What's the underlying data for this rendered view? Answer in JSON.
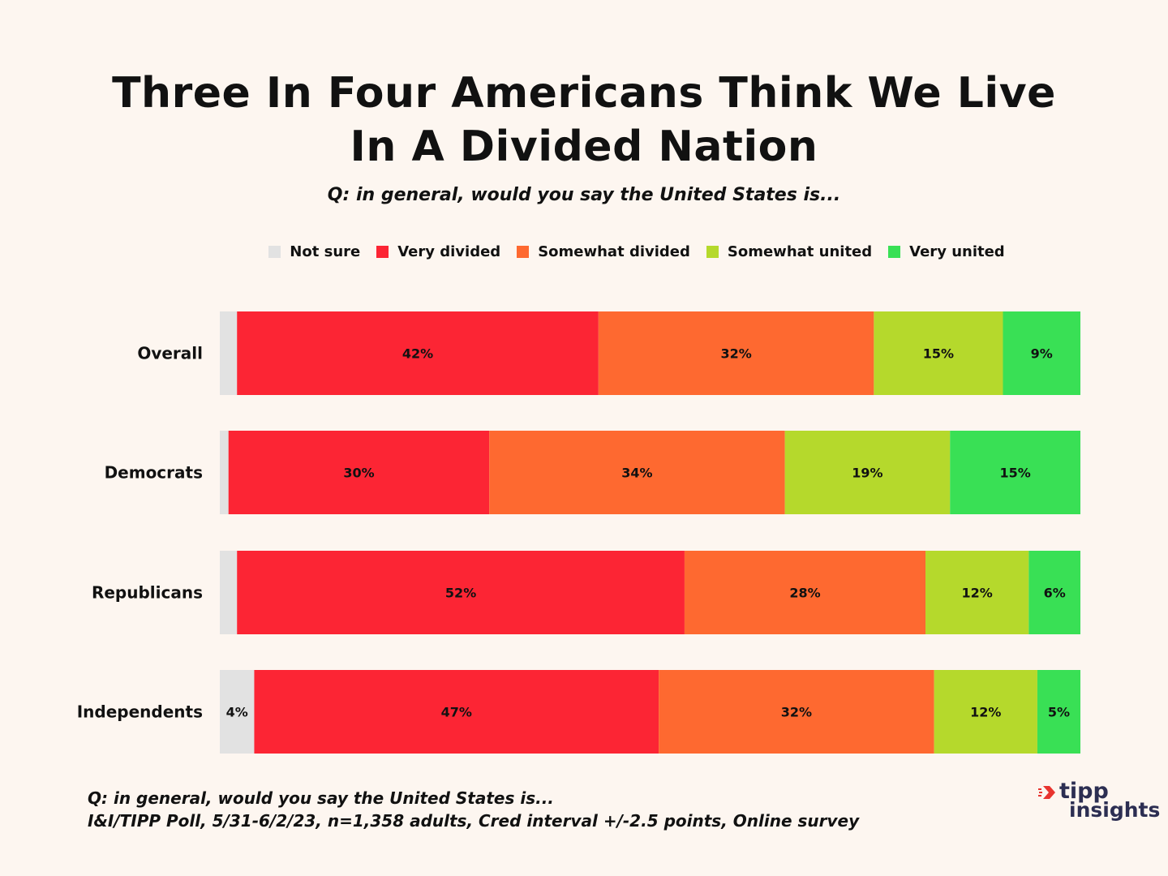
{
  "title": "Three In Four Americans Think We Live In A Divided Nation",
  "subtitle": "Q: in general, would you say the United States is...",
  "footnote": {
    "line1": "Q:  in general, would you say the United States is...",
    "line2": "I&I/TIPP Poll, 5/31-6/2/23, n=1,358 adults, Cred interval +/-2.5 points, Online survey"
  },
  "logo": {
    "word1": "tipp",
    "word2": "insights",
    "accent": "#e8342f",
    "color": "#2c2e52"
  },
  "chart_data": {
    "type": "bar",
    "orientation": "horizontal",
    "stacked": true,
    "categories": [
      "Overall",
      "Democrats",
      "Republicans",
      "Independents"
    ],
    "series": [
      {
        "name": "Not sure",
        "color": "#e2e2e2",
        "values": [
          2,
          1,
          2,
          4
        ],
        "labels": [
          "",
          "",
          "",
          "4%"
        ]
      },
      {
        "name": "Very divided",
        "color": "#fc2534",
        "values": [
          42,
          30,
          52,
          47
        ],
        "labels": [
          "42%",
          "30%",
          "52%",
          "47%"
        ]
      },
      {
        "name": "Somewhat divided",
        "color": "#fe6930",
        "values": [
          32,
          34,
          28,
          32
        ],
        "labels": [
          "32%",
          "34%",
          "28%",
          "32%"
        ]
      },
      {
        "name": "Somewhat united",
        "color": "#b5d92c",
        "values": [
          15,
          19,
          12,
          12
        ],
        "labels": [
          "15%",
          "19%",
          "12%",
          "12%"
        ]
      },
      {
        "name": "Very united",
        "color": "#39e055",
        "values": [
          9,
          15,
          6,
          5
        ],
        "labels": [
          "9%",
          "15%",
          "6%",
          "5%"
        ]
      }
    ],
    "xlim": [
      0,
      100
    ],
    "legend": "top"
  }
}
